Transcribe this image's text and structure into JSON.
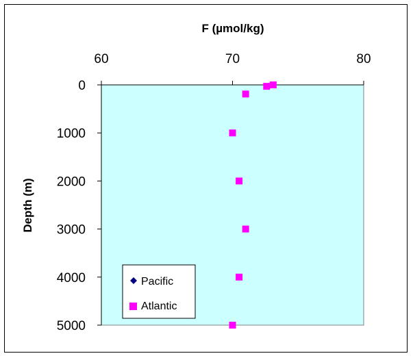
{
  "chart_data": {
    "type": "scatter",
    "title": "F (µmol/kg)",
    "xlabel": "F (µmol/kg)",
    "ylabel": "Depth (m)",
    "xlim": [
      60,
      80
    ],
    "ylim": [
      0,
      5000
    ],
    "y_inverted": true,
    "x_axis_position": "top",
    "x_ticks": [
      "60",
      "70",
      "80"
    ],
    "y_ticks": [
      "0",
      "1000",
      "2000",
      "3000",
      "4000",
      "5000"
    ],
    "plot_background": "#ccffff",
    "grid": false,
    "legend_position": "bottom-left",
    "series": [
      {
        "name": "Pacific",
        "marker": "diamond",
        "color": "#000080",
        "points": []
      },
      {
        "name": "Atlantic",
        "marker": "square",
        "color": "#ff00ff",
        "points": [
          {
            "x": 73.1,
            "y": 0
          },
          {
            "x": 72.6,
            "y": 30
          },
          {
            "x": 71.0,
            "y": 190
          },
          {
            "x": 70.0,
            "y": 1000
          },
          {
            "x": 70.5,
            "y": 2000
          },
          {
            "x": 71.0,
            "y": 3000
          },
          {
            "x": 70.5,
            "y": 4000
          },
          {
            "x": 70.0,
            "y": 5000
          }
        ]
      }
    ]
  }
}
